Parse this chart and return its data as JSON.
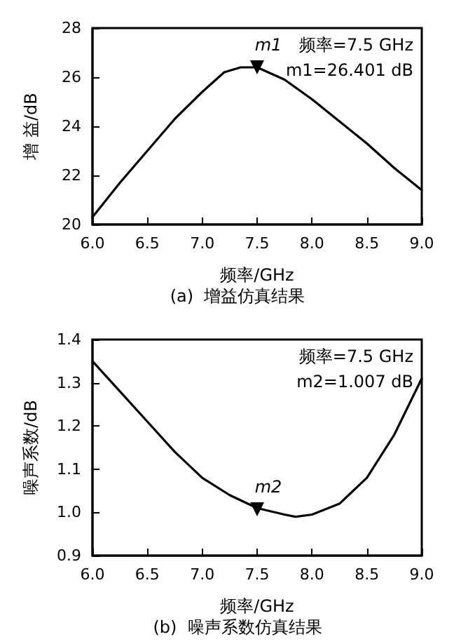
{
  "chart_data": [
    {
      "type": "line",
      "title": "(a)  增益仿真结果",
      "xlabel": "频率/GHz",
      "ylabel": "增 益/dB",
      "x": [
        6.0,
        6.25,
        6.5,
        6.75,
        7.0,
        7.2,
        7.35,
        7.5,
        7.75,
        8.0,
        8.25,
        8.5,
        8.75,
        9.0
      ],
      "series": [
        {
          "color": "#000000",
          "values": [
            20.3,
            21.7,
            23.0,
            24.3,
            25.4,
            26.2,
            26.4,
            26.4,
            25.9,
            25.1,
            24.2,
            23.3,
            22.3,
            21.4
          ]
        }
      ],
      "xlim": [
        6.0,
        9.0
      ],
      "xticks": [
        {
          "value": 6,
          "label": "6.0"
        },
        6.5,
        {
          "value": 7,
          "label": "7.0"
        },
        7.5,
        {
          "value": 8,
          "label": "8.0"
        },
        8.5,
        {
          "value": 9,
          "label": "9.0"
        }
      ],
      "ylim": [
        20,
        28
      ],
      "yticks": [
        20,
        22,
        24,
        26,
        28
      ],
      "grid": false,
      "marker": "none",
      "line_style": "solid",
      "annotations": [
        {
          "text": "m1",
          "x": 7.5,
          "y": 26.401
        },
        "频率=7.5 GHz",
        "m1=26.401 dB"
      ]
    },
    {
      "type": "line",
      "title": "(b)  噪声系数仿真结果",
      "xlabel": "频率/GHz",
      "ylabel": "噪声系数/dB",
      "x": [
        6.0,
        6.25,
        6.5,
        6.75,
        7.0,
        7.25,
        7.5,
        7.75,
        7.85,
        8.0,
        8.25,
        8.5,
        8.75,
        9.0
      ],
      "series": [
        {
          "color": "#000000",
          "values": [
            1.35,
            1.28,
            1.21,
            1.14,
            1.08,
            1.04,
            1.01,
            0.995,
            0.99,
            0.995,
            1.02,
            1.08,
            1.18,
            1.31
          ]
        }
      ],
      "xlim": [
        6.0,
        9.0
      ],
      "xticks": [
        {
          "value": 6,
          "label": "6.0"
        },
        6.5,
        {
          "value": 7,
          "label": "7.0"
        },
        7.5,
        {
          "value": 8,
          "label": "8.0"
        },
        8.5,
        {
          "value": 9,
          "label": "9.0"
        }
      ],
      "ylim": [
        0.9,
        1.4
      ],
      "yticks": [
        0.9,
        {
          "value": 1,
          "label": "1.0"
        },
        1.1,
        1.2,
        1.3,
        1.4
      ],
      "grid": false,
      "marker": "none",
      "line_style": "solid",
      "annotations": [
        {
          "text": "m2",
          "x": 7.5,
          "y": 1.007
        },
        "频率=7.5 GHz",
        "m2=1.007 dB"
      ]
    }
  ]
}
